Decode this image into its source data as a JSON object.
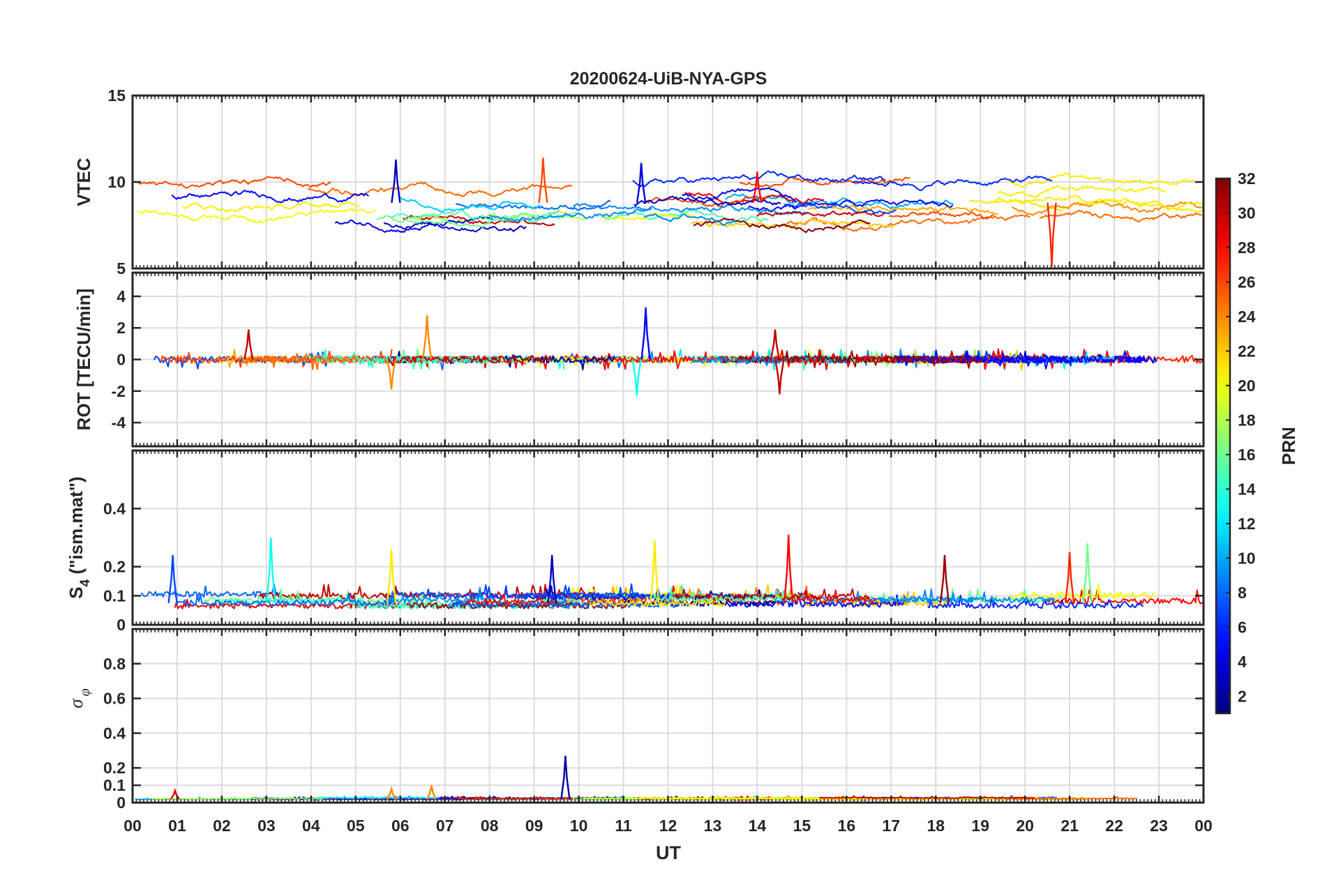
{
  "chart_data": {
    "type": "line",
    "title": "20200624-UiB-NYA-GPS",
    "xlabel": "UT",
    "x_ticks": [
      "00",
      "01",
      "02",
      "03",
      "04",
      "05",
      "06",
      "07",
      "08",
      "09",
      "10",
      "11",
      "12",
      "13",
      "14",
      "15",
      "16",
      "17",
      "18",
      "19",
      "20",
      "21",
      "22",
      "23",
      "00"
    ],
    "xlim_hours": [
      0,
      24
    ],
    "colorbar": {
      "label": "PRN",
      "range": [
        1,
        32
      ],
      "ticks": [
        "32",
        "30",
        "28",
        "26",
        "24",
        "22",
        "20",
        "18",
        "16",
        "14",
        "12",
        "10",
        "8",
        "6",
        "4",
        "2"
      ],
      "colormap": "jet"
    },
    "panels": [
      {
        "id": "vtec",
        "ylabel": "VTEC",
        "ylim": [
          5,
          15
        ],
        "yticks": [
          "5",
          "10",
          "15"
        ],
        "yticks_values": [
          5,
          10,
          15
        ],
        "baseline": 8.8,
        "noise": 0.35,
        "excursion": 1.3,
        "peaks": [
          {
            "hour": 5.9,
            "prn": 3,
            "value": 11.3
          },
          {
            "hour": 9.2,
            "prn": 26,
            "value": 11.4
          },
          {
            "hour": 11.4,
            "prn": 4,
            "value": 11.1
          },
          {
            "hour": 14.0,
            "prn": 28,
            "value": 10.6
          },
          {
            "hour": 20.6,
            "prn": 27,
            "value": 5.1
          }
        ]
      },
      {
        "id": "rot",
        "ylabel": "ROT [TECU/min]",
        "ylim": [
          -5.5,
          5.5
        ],
        "yticks": [
          "-4",
          "-2",
          "0",
          "2",
          "4"
        ],
        "yticks_values": [
          -4,
          -2,
          0,
          2,
          4
        ],
        "baseline": 0.0,
        "noise": 0.22,
        "excursion": 0.15,
        "peaks": [
          {
            "hour": 2.6,
            "prn": 30,
            "value": 1.9
          },
          {
            "hour": 5.8,
            "prn": 24,
            "value": -1.9
          },
          {
            "hour": 6.6,
            "prn": 24,
            "value": 2.8
          },
          {
            "hour": 11.5,
            "prn": 5,
            "value": 3.3
          },
          {
            "hour": 11.3,
            "prn": 13,
            "value": -2.3
          },
          {
            "hour": 14.4,
            "prn": 30,
            "value": 1.9
          },
          {
            "hour": 14.5,
            "prn": 30,
            "value": -2.2
          }
        ]
      },
      {
        "id": "s4",
        "ylabel": "S4 (\"ism.mat\")",
        "ylabel_main": "S",
        "ylabel_sub": "4",
        "ylabel_rest": " (\"ism.mat\")",
        "ylim": [
          0,
          0.6
        ],
        "yticks": [
          "0",
          "0.1",
          "0.2",
          "0.4"
        ],
        "yticks_values": [
          0,
          0.1,
          0.2,
          0.4
        ],
        "baseline": 0.075,
        "noise": 0.02,
        "excursion": 0.02,
        "peaks": [
          {
            "hour": 0.9,
            "prn": 7,
            "value": 0.24
          },
          {
            "hour": 3.1,
            "prn": 13,
            "value": 0.3
          },
          {
            "hour": 5.8,
            "prn": 21,
            "value": 0.26
          },
          {
            "hour": 9.4,
            "prn": 3,
            "value": 0.24
          },
          {
            "hour": 11.7,
            "prn": 21,
            "value": 0.29
          },
          {
            "hour": 14.7,
            "prn": 28,
            "value": 0.31
          },
          {
            "hour": 18.2,
            "prn": 31,
            "value": 0.24
          },
          {
            "hour": 21.0,
            "prn": 27,
            "value": 0.25
          },
          {
            "hour": 21.4,
            "prn": 16,
            "value": 0.28
          }
        ]
      },
      {
        "id": "sigma_phi",
        "ylabel": "σ φ",
        "ylabel_sym": "σ",
        "ylabel_sub": "φ",
        "ylim": [
          0,
          1
        ],
        "yticks": [
          "0",
          "0.1",
          "0.2",
          "0.4",
          "0.6",
          "0.8"
        ],
        "yticks_values": [
          0,
          0.1,
          0.2,
          0.4,
          0.6,
          0.8
        ],
        "baseline": 0.02,
        "noise": 0.006,
        "excursion": 0.005,
        "peaks": [
          {
            "hour": 0.95,
            "prn": 29,
            "value": 0.07
          },
          {
            "hour": 5.8,
            "prn": 24,
            "value": 0.08
          },
          {
            "hour": 6.7,
            "prn": 24,
            "value": 0.1
          },
          {
            "hour": 9.7,
            "prn": 2,
            "value": 0.27
          }
        ]
      }
    ]
  }
}
